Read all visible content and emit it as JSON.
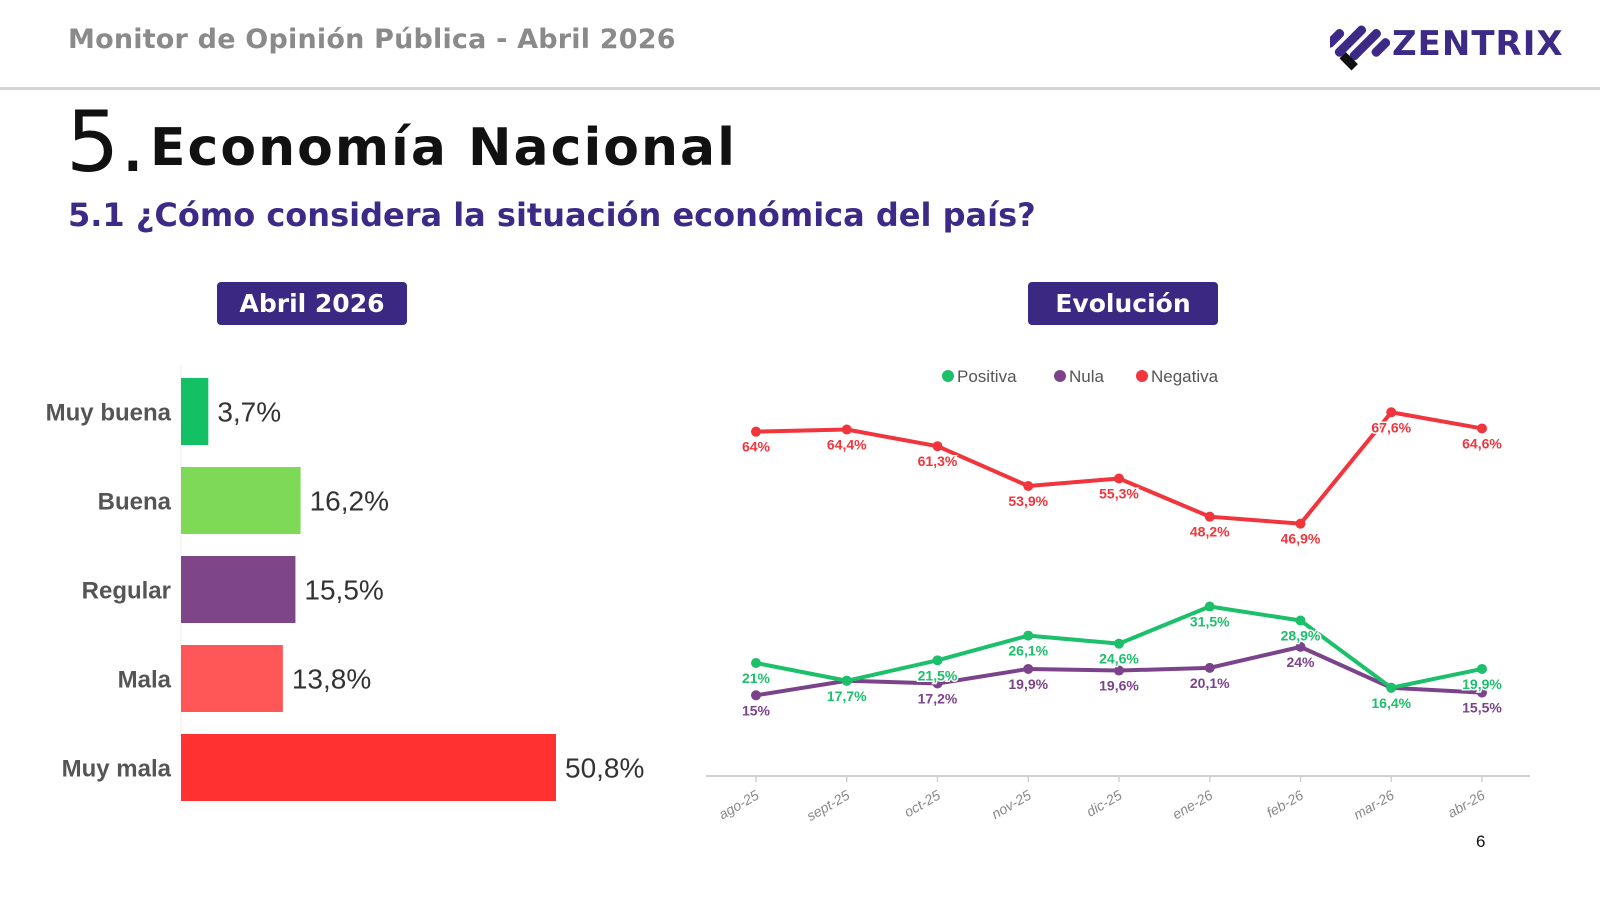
{
  "header": {
    "title": "Monitor de Opinión Pública - Abril 2026",
    "logo_text": "ZENTRIX"
  },
  "section": {
    "number": "5.",
    "title": "Economía Nacional",
    "question": "5.1 ¿Cómo considera la situación económica del país?"
  },
  "left_panel": {
    "pill_label": "Abril 2026"
  },
  "right_panel": {
    "pill_label": "Evolución"
  },
  "page_number": "6",
  "colors": {
    "brand": "#3b2883",
    "positiva": "#1cbf6a",
    "nula": "#7b448a",
    "negativa": "#f0353c"
  },
  "chart_data": [
    {
      "type": "bar",
      "orientation": "horizontal",
      "title": "Abril 2026",
      "categories": [
        "Muy buena",
        "Buena",
        "Regular",
        "Mala",
        "Muy mala"
      ],
      "values": [
        3.7,
        16.2,
        15.5,
        13.8,
        50.8
      ],
      "value_labels": [
        "3,7%",
        "16,2%",
        "15,5%",
        "13,8%",
        "50,8%"
      ],
      "bar_colors": [
        "#13c064",
        "#7ed957",
        "#7e4588",
        "#ff5757",
        "#ff3131"
      ],
      "xlim": [
        0,
        55
      ],
      "grid": false,
      "unit": "%"
    },
    {
      "type": "line",
      "title": "Evolución",
      "x": [
        "ago-25",
        "sept-25",
        "oct-25",
        "nov-25",
        "dic-25",
        "ene-26",
        "feb-26",
        "mar-26",
        "abr-26"
      ],
      "series": [
        {
          "name": "Positiva",
          "color": "#1cbf6a",
          "values": [
            21,
            17.7,
            21.5,
            26.1,
            24.6,
            31.5,
            28.9,
            16.4,
            19.9
          ],
          "labels": [
            "21%",
            "17,7%",
            "21,5%",
            "26,1%",
            "24,6%",
            "31,5%",
            "28,9%",
            "16,4%",
            "19,9%"
          ]
        },
        {
          "name": "Nula",
          "color": "#7b448a",
          "values": [
            15,
            17.7,
            17.2,
            19.9,
            19.6,
            20.1,
            24,
            16.4,
            15.5
          ],
          "labels": [
            "15%",
            "",
            "17,2%",
            "19,9%",
            "19,6%",
            "20,1%",
            "24%",
            "",
            "15,5%"
          ]
        },
        {
          "name": "Negativa",
          "color": "#f0353c",
          "values": [
            64,
            64.4,
            61.3,
            53.9,
            55.3,
            48.2,
            46.9,
            67.6,
            64.6
          ],
          "labels": [
            "64%",
            "64,4%",
            "61,3%",
            "53,9%",
            "55,3%",
            "48,2%",
            "46,9%",
            "67,6%",
            "64,6%"
          ]
        }
      ],
      "ylim": [
        0,
        70
      ],
      "legend": "top-center",
      "grid": false,
      "xlabel": "",
      "ylabel": ""
    }
  ]
}
